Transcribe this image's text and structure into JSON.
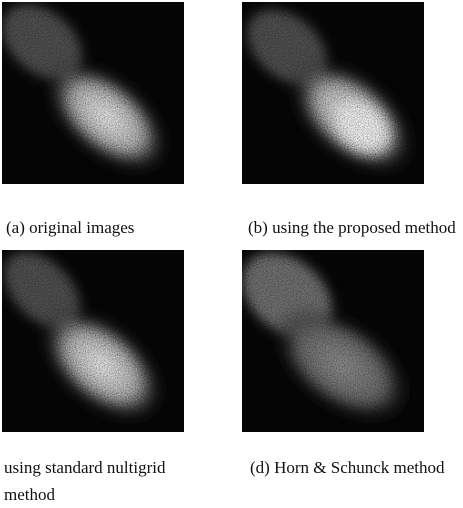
{
  "panels": [
    {
      "caption": "(a) original images"
    },
    {
      "caption": "(b) using the proposed method"
    },
    {
      "caption": "using standard nultigrid method"
    },
    {
      "caption": "(d) Horn & Schunck method"
    }
  ]
}
